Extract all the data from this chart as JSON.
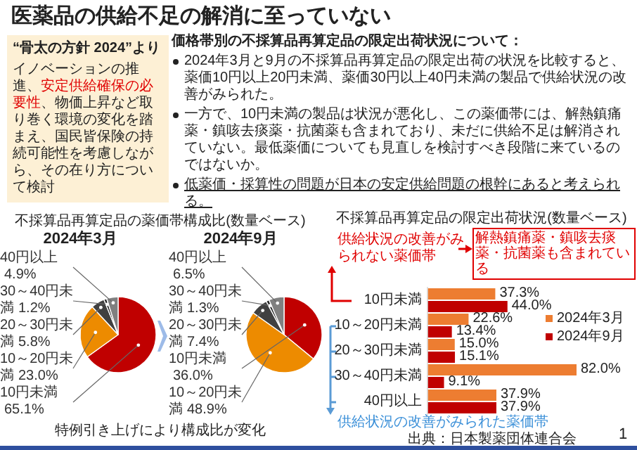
{
  "chart_data": [
    {
      "type": "pie",
      "title": "2024年3月",
      "categories": [
        "10円未満",
        "10～20円未満",
        "20～30円未満",
        "30～40円未満",
        "40円以上"
      ],
      "values": [
        65.1,
        23.0,
        5.8,
        1.2,
        4.9
      ],
      "value_labels": [
        "65.1%",
        "23.0%",
        "5.8%",
        "1.2%",
        "4.9%"
      ],
      "colors": [
        "#c00000",
        "#ed8b00",
        "#404040",
        "#262626",
        "#808080"
      ],
      "annotations": [
        "医薬品の供給不足の解消に至っていない",
        "“骨太の方針 2024”より",
        "イノベーションの推進、",
        "安定供給確保の必要性",
        "、物価上昇など取り巻く環境の変化を踏まえ、国民皆保険の持続可能性を考慮しながら、その在り方について検討",
        "価格帯別の不採算品再算定品の限定出荷状況について：",
        "2024年3月と9月の不採算品再算定品の限定出荷の状況を比較すると、薬価10円以上20円未満、薬価30円以上40円未満の製品で供給状況の改善がみられた。",
        "一方で、10円未満の製品は状況が悪化し、この薬価帯には、解熱鎮痛薬・鎮咳去痰薬・抗菌薬も含まれており、未だに供給不足は解消されていない。最低薬価についても見直しを検討すべき段階に来ているのではないか。",
        "低薬価・採算性の問題が日本の安定供給問題の根幹にあると考えられる。",
        "不採算品再算定品の薬価帯構成比(数量ベース)",
        "特例引き上げにより構成比が変化"
      ]
    },
    {
      "type": "pie",
      "title": "2024年9月",
      "categories": [
        "10円未満",
        "10～20円未満",
        "20～30円未満",
        "30～40円未満",
        "40円以上"
      ],
      "values": [
        36.0,
        48.9,
        7.4,
        1.3,
        6.5
      ],
      "value_labels": [
        "36.0%",
        "48.9%",
        "7.4%",
        "1.3%",
        "6.5%"
      ],
      "colors": [
        "#c00000",
        "#ed8b00",
        "#404040",
        "#262626",
        "#808080"
      ]
    },
    {
      "type": "bar",
      "orientation": "horizontal",
      "title": "不採算品再算定品の限定出荷状況(数量ベース)",
      "categories": [
        "10円未満",
        "10～20円未満",
        "20～30円未満",
        "30～40円未満",
        "40円以上"
      ],
      "legend": "right",
      "series": [
        {
          "name": "2024年3月",
          "color": "#ed7d31",
          "values": [
            37.3,
            22.6,
            15.0,
            82.0,
            37.9
          ],
          "value_labels": [
            "37.3%",
            "22.6%",
            "15.0%",
            "82.0%",
            "37.9%"
          ]
        },
        {
          "name": "2024年9月",
          "color": "#c00000",
          "values": [
            44.0,
            13.4,
            15.1,
            9.1,
            37.9
          ],
          "value_labels": [
            "44.0%",
            "13.4%",
            "15.1%",
            "9.1%",
            "37.9%"
          ]
        }
      ],
      "annotations": [
        "供給状況の改善がみられない薬価帯",
        "解熱鎮痛薬・鎮咳去痰薬・抗菌薬も含まれている",
        "供給状況の改善がみられた薬価帯",
        "出典：日本製薬団体連合会",
        "1"
      ]
    }
  ]
}
